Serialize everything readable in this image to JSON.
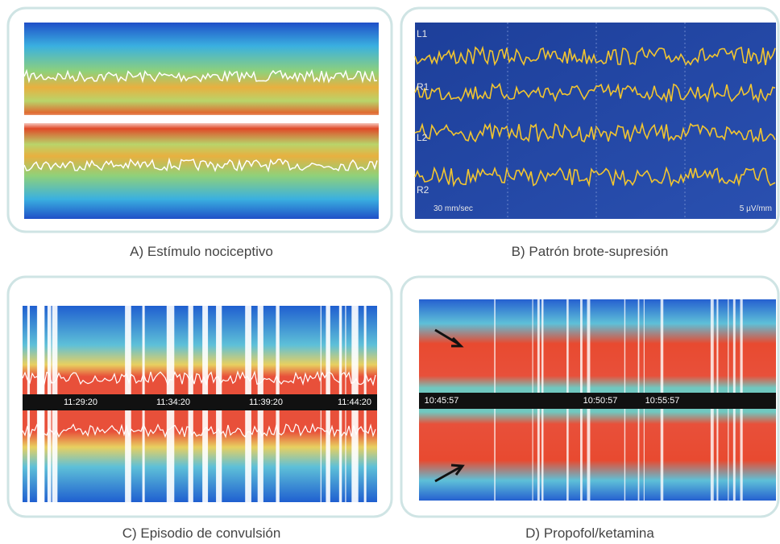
{
  "panels": [
    {
      "caption": "A) Estímulo nociceptivo"
    },
    {
      "caption": "B) Patrón brote-supresión",
      "channels": [
        "L1",
        "R1",
        "L2",
        "R2"
      ],
      "speed": "30 mm/sec",
      "gain": "5 µV/mm"
    },
    {
      "caption": "C) Episodio de convulsión",
      "times": [
        "11:29:20",
        "11:34:20",
        "11:39:20",
        "11:44:20"
      ]
    },
    {
      "caption": "D) Propofol/ketamina",
      "times": [
        "10:45:57",
        "10:50:57",
        "10:55:57"
      ]
    }
  ]
}
